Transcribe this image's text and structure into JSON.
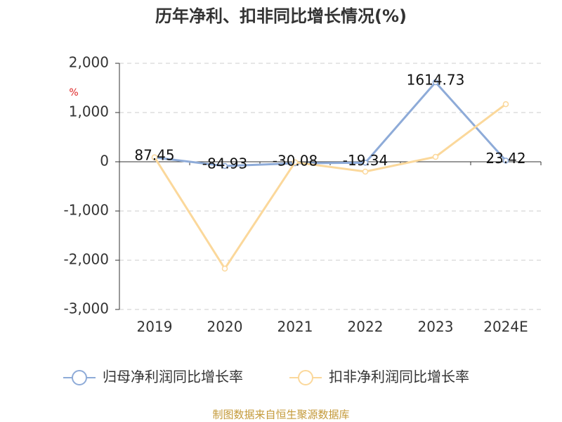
{
  "chart_data": {
    "type": "line",
    "title": "历年净利、扣非同比增长情况(%)",
    "y_unit": "%",
    "categories": [
      "2019",
      "2020",
      "2021",
      "2022",
      "2023",
      "2024E"
    ],
    "series": [
      {
        "name": "归母净利润同比增长率",
        "color": "#8eabd8",
        "values": [
          87.45,
          -84.93,
          -30.08,
          -19.34,
          1614.73,
          23.42
        ],
        "data_labels": true
      },
      {
        "name": "扣非净利润同比增长率",
        "color": "#fbd89b",
        "values": [
          90,
          -2170,
          -10,
          -200,
          100,
          1170
        ],
        "data_labels": false
      }
    ],
    "ylim": [
      -3000,
      2000
    ],
    "yticks": [
      {
        "value": 2000,
        "label": "2,000"
      },
      {
        "value": 1000,
        "label": "1,000"
      },
      0,
      {
        "value": -1000,
        "label": "-1,000"
      },
      {
        "value": -2000,
        "label": "-2,000"
      },
      {
        "value": -3000,
        "label": "-3,000"
      }
    ],
    "grid": true,
    "legend": "bottom",
    "source": "制图数据来自恒生聚源数据库"
  }
}
